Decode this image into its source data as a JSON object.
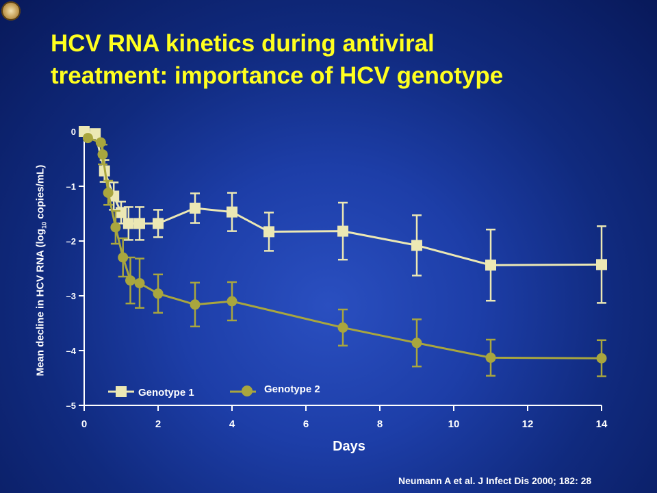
{
  "slide": {
    "title_line1": "HCV RNA kinetics during antiviral",
    "title_line2": "treatment: importance of HCV genotype",
    "citation": "Neumann A et al. J Infect Dis 2000; 182: 28"
  },
  "colors": {
    "title": "#ffff1f",
    "axis": "#ffffff",
    "genotype1": "#ece8b4",
    "genotype2": "#a9a63e"
  },
  "chart_data": {
    "type": "line",
    "title": "",
    "xlabel": "Days",
    "ylabel_main": "Mean decline in HCV RNA (log",
    "ylabel_sub": "10",
    "ylabel_end": " copies/mL)",
    "xlim": [
      0,
      14
    ],
    "ylim": [
      -5,
      0
    ],
    "xticks": [
      {
        "v": 0,
        "label": "0"
      },
      {
        "v": 2,
        "label": "2"
      },
      {
        "v": 4,
        "label": "4"
      },
      {
        "v": 6,
        "label": "6"
      },
      {
        "v": 8,
        "label": "8"
      },
      {
        "v": 10,
        "label": "10"
      },
      {
        "v": 12,
        "label": "12"
      },
      {
        "v": 14,
        "label": "14"
      }
    ],
    "yticks": [
      {
        "v": 0,
        "label": "0"
      },
      {
        "v": -1,
        "label": "–1"
      },
      {
        "v": -2,
        "label": "–2"
      },
      {
        "v": -3,
        "label": "–3"
      },
      {
        "v": -4,
        "label": "–4"
      },
      {
        "v": -5,
        "label": "–5"
      }
    ],
    "grid": false,
    "legend_position": "bottom-left",
    "series": [
      {
        "name": "Genotype 1",
        "marker": "square",
        "color": "#ece8b4",
        "x": [
          0.0,
          0.3,
          0.55,
          0.8,
          1.0,
          1.2,
          1.5,
          2.0,
          3.0,
          4.0,
          5.0,
          7.0,
          9.0,
          11.0,
          14.0
        ],
        "y": [
          0.0,
          -0.04,
          -0.72,
          -1.18,
          -1.48,
          -1.68,
          -1.68,
          -1.68,
          -1.4,
          -1.47,
          -1.83,
          -1.82,
          -2.08,
          -2.44,
          -2.43
        ],
        "err": [
          0.0,
          0.0,
          0.2,
          0.25,
          0.2,
          0.3,
          0.3,
          0.25,
          0.27,
          0.35,
          0.35,
          0.52,
          0.55,
          0.65,
          0.7
        ]
      },
      {
        "name": "Genotype 2",
        "marker": "circle",
        "color": "#a9a63e",
        "x": [
          0.1,
          0.45,
          0.5,
          0.65,
          0.85,
          1.05,
          1.25,
          1.5,
          2.0,
          3.0,
          4.0,
          7.0,
          9.0,
          11.0,
          14.0
        ],
        "y": [
          -0.12,
          -0.2,
          -0.42,
          -1.12,
          -1.75,
          -2.3,
          -2.72,
          -2.77,
          -2.96,
          -3.16,
          -3.1,
          -3.58,
          -3.86,
          -4.13,
          -4.14
        ],
        "err": [
          0.0,
          0.0,
          0.18,
          0.22,
          0.3,
          0.35,
          0.42,
          0.45,
          0.35,
          0.4,
          0.35,
          0.33,
          0.43,
          0.33,
          0.33
        ]
      }
    ]
  }
}
